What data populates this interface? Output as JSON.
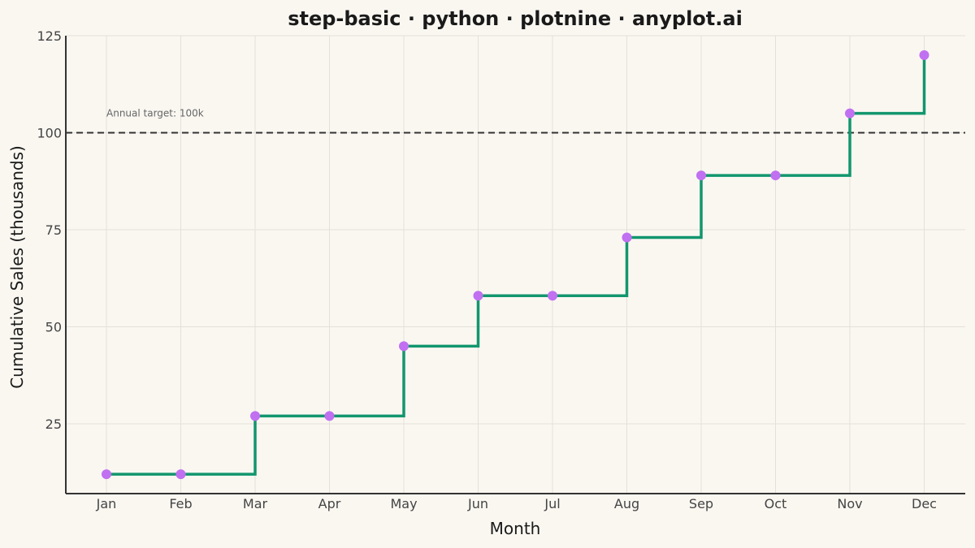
{
  "chart_data": {
    "type": "line",
    "step": "hv",
    "title": "step-basic · python · plotnine · anyplot.ai",
    "xlabel": "Month",
    "ylabel": "Cumulative Sales (thousands)",
    "categories": [
      "Jan",
      "Feb",
      "Mar",
      "Apr",
      "May",
      "Jun",
      "Jul",
      "Aug",
      "Sep",
      "Oct",
      "Nov",
      "Dec"
    ],
    "series": [
      {
        "values": [
          12,
          12,
          27,
          27,
          45,
          58,
          58,
          73,
          89,
          89,
          105,
          120
        ]
      }
    ],
    "ylim": [
      7,
      125
    ],
    "yticks": [
      25,
      50,
      75,
      100,
      125
    ],
    "grid": true,
    "reference_line": {
      "y": 100,
      "style": "dashed",
      "label": "Annual target: 100k"
    },
    "colors": {
      "line": "#12966E",
      "points": "#C070F0",
      "reference": "#333333",
      "grid": "#E4E0DA",
      "background": "#FAF7F1"
    }
  }
}
